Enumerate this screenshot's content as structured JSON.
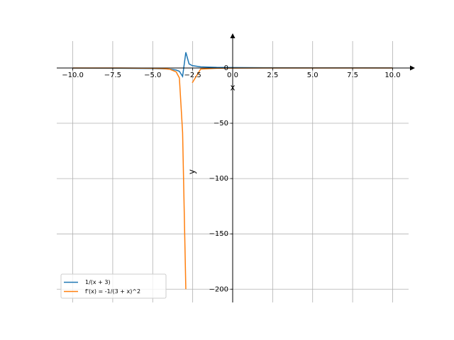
{
  "chart_data": {
    "type": "line",
    "x": [
      -10,
      -7,
      -5,
      -4.343,
      -3.939,
      -3.535,
      -3.333,
      -3.131,
      -2.929,
      -2.727,
      -2.525,
      -2,
      -1,
      0,
      2,
      5,
      10
    ],
    "series": [
      {
        "name": "1/(x + 3)",
        "color": "#1f77b4",
        "values": [
          -0.143,
          -0.25,
          -0.5,
          -0.745,
          -1.065,
          -1.87,
          -3.0,
          -7.62,
          14.14,
          3.67,
          2.1,
          1,
          0.5,
          0.333,
          0.2,
          0.125,
          0.077
        ]
      },
      {
        "name": "f'(x) = -1/(3 + x)^2",
        "color": "#ff7f0e",
        "values": [
          -0.02,
          -0.0625,
          -0.25,
          -0.555,
          -1.13,
          -3.5,
          -9.0,
          -58.3,
          -200,
          null,
          -13.4,
          -1,
          -0.25,
          -0.111,
          -0.04,
          -0.0156,
          -0.0059
        ]
      }
    ],
    "xlabel": "x",
    "ylabel": "y",
    "xlim": [
      -11,
      11
    ],
    "ylim": [
      -212,
      24.3
    ],
    "xticks": [
      {
        "value": -10,
        "label": "−10.0"
      },
      {
        "value": -7.5,
        "label": "−7.5"
      },
      {
        "value": -5,
        "label": "−5.0"
      },
      {
        "value": -2.5,
        "label": "−2.5"
      },
      {
        "value": 0,
        "label": "0.0"
      },
      {
        "value": 2.5,
        "label": "2.5"
      },
      {
        "value": 5,
        "label": "5.0"
      },
      {
        "value": 7.5,
        "label": "7.5"
      },
      {
        "value": 10,
        "label": "10.0"
      }
    ],
    "yticks": [
      0,
      {
        "value": -50,
        "label": "−50"
      },
      {
        "value": -100,
        "label": "−100"
      },
      {
        "value": -150,
        "label": "−150"
      },
      {
        "value": -200,
        "label": "−200"
      }
    ],
    "grid": true,
    "legend": "lower left"
  }
}
